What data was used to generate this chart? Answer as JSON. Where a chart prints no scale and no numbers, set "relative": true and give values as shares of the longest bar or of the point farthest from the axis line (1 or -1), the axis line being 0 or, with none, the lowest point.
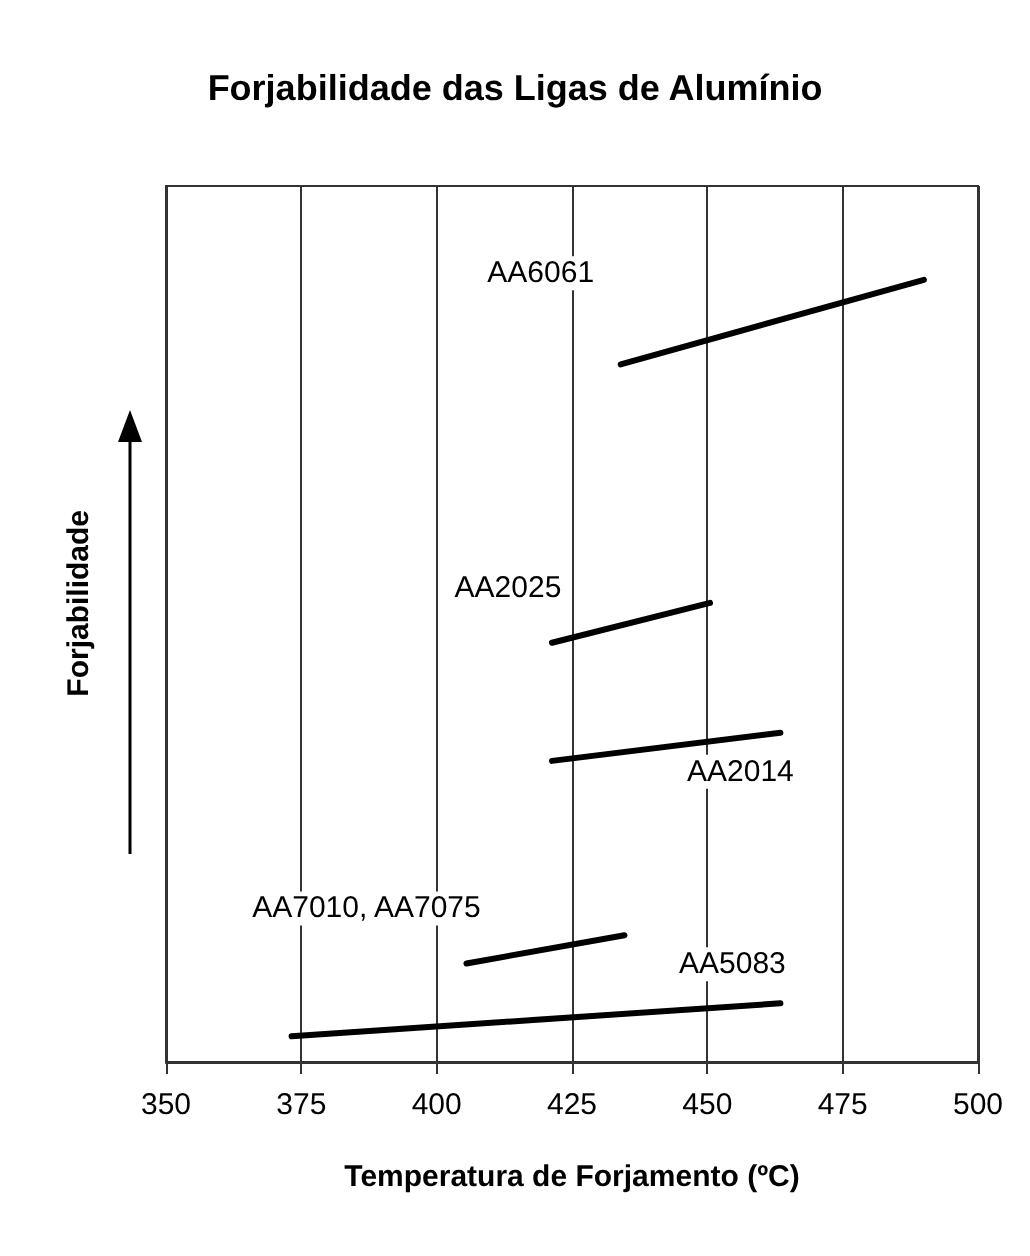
{
  "chart_data": {
    "type": "line",
    "title": "Forjabilidade das Ligas de Alumínio",
    "xlabel": "Temperatura de Forjamento (ºC)",
    "ylabel": "Forjabilidade",
    "relative": true,
    "xlim": [
      350,
      500
    ],
    "xticks": [
      350,
      375,
      400,
      425,
      450,
      475,
      500
    ],
    "grid": "x",
    "marker": "none",
    "line_style": "solid",
    "series": [
      {
        "name": "AA6061",
        "color": "#000000",
        "x": [
          434,
          490
        ],
        "values": [
          0.892,
          1
        ]
      },
      {
        "name": "AA2025",
        "color": "#000000",
        "x": [
          421.3,
          450.5
        ],
        "values": [
          0.536,
          0.587
        ]
      },
      {
        "name": "AA2014",
        "color": "#000000",
        "x": [
          421.3,
          463.5
        ],
        "values": [
          0.385,
          0.421
        ]
      },
      {
        "name": "AA7010, AA7075",
        "color": "#000000",
        "x": [
          405.5,
          434.7
        ],
        "values": [
          0.126,
          0.162
        ]
      },
      {
        "name": "AA5083",
        "color": "#000000",
        "x": [
          373.2,
          463.5
        ],
        "values": [
          0.033,
          0.075
        ]
      }
    ]
  }
}
